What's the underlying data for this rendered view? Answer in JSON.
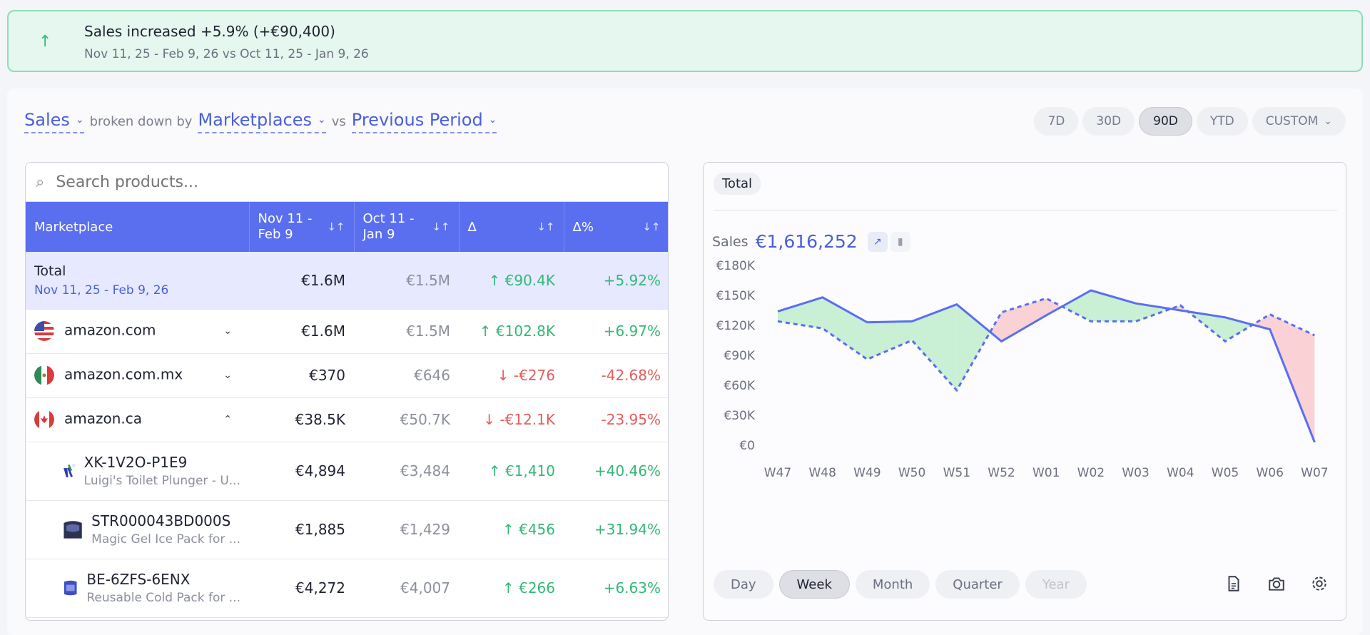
{
  "banner": {
    "arrow": "↑",
    "title": "Sales increased +5.9% (+€90,400)",
    "subtitle": "Nov 11, 25 - Feb 9, 26 vs Oct 11, 25 - Jan 9, 26"
  },
  "filters": {
    "metric": "Sales",
    "broken_down_by": "broken down by",
    "dimension": "Marketplaces",
    "vs": "vs",
    "comparison": "Previous Period"
  },
  "periods": [
    "7D",
    "30D",
    "90D",
    "YTD",
    "CUSTOM"
  ],
  "active_period": "90D",
  "search": {
    "placeholder": "Search products..."
  },
  "table": {
    "headers": {
      "marketplace": "Marketplace",
      "current": "Nov 11 -\nFeb 9",
      "previous": "Oct 11 -\nJan 9",
      "delta": "Δ",
      "delta_pct": "Δ%"
    },
    "total": {
      "label": "Total",
      "range": "Nov 11, 25 - Feb 9, 26",
      "current": "€1.6M",
      "previous": "€1.5M",
      "delta": "↑ €90.4K",
      "delta_pct": "+5.92%"
    },
    "marketplaces": [
      {
        "name": "amazon.com",
        "current": "€1.6M",
        "previous": "€1.5M",
        "delta": "↑ €102.8K",
        "delta_pct": "+6.97%",
        "trend": "up",
        "expanded": false
      },
      {
        "name": "amazon.com.mx",
        "current": "€370",
        "previous": "€646",
        "delta": "↓ -€276",
        "delta_pct": "-42.68%",
        "trend": "down",
        "expanded": false
      },
      {
        "name": "amazon.ca",
        "current": "€38.5K",
        "previous": "€50.7K",
        "delta": "↓ -€12.1K",
        "delta_pct": "-23.95%",
        "trend": "down",
        "expanded": true
      }
    ],
    "products": [
      {
        "sku": "XK-1V2O-P1E9",
        "title": "Luigi's Toilet Plunger - U...",
        "current": "€4,894",
        "previous": "€3,484",
        "delta": "↑ €1,410",
        "delta_pct": "+40.46%"
      },
      {
        "sku": "STR000043BD000S",
        "title": "Magic Gel Ice Pack for ...",
        "current": "€1,885",
        "previous": "€1,429",
        "delta": "↑ €456",
        "delta_pct": "+31.94%"
      },
      {
        "sku": "BE-6ZFS-6ENX",
        "title": "Reusable Cold Pack for ...",
        "current": "€4,272",
        "previous": "€4,007",
        "delta": "↑ €266",
        "delta_pct": "+6.63%"
      }
    ]
  },
  "chart_panel": {
    "tab": "Total",
    "sales_label": "Sales",
    "sales_value": "€1,616,252",
    "granularity": [
      "Day",
      "Week",
      "Month",
      "Quarter",
      "Year"
    ],
    "active_granularity": "Week"
  },
  "chart_data": {
    "type": "line",
    "categories": [
      "W47",
      "W48",
      "W49",
      "W50",
      "W51",
      "W52",
      "W01",
      "W02",
      "W03",
      "W04",
      "W05",
      "W06",
      "W07"
    ],
    "series": [
      {
        "values": [
          134000,
          148000,
          123000,
          124000,
          141000,
          104000,
          130000,
          155000,
          142000,
          135000,
          128000,
          116000,
          3000
        ],
        "style": "solid"
      },
      {
        "values": [
          124000,
          117000,
          86000,
          105000,
          55000,
          133000,
          147000,
          124000,
          124000,
          140000,
          104000,
          131000,
          110000
        ],
        "style": "dashed"
      }
    ],
    "ylim": [
      0,
      180000
    ],
    "yticks": [
      "€0",
      "€30K",
      "€60K",
      "€90K",
      "€120K",
      "€150K",
      "€180K"
    ],
    "colors": {
      "line": "#5a6ef0",
      "gain_fill": "#bfeccd",
      "loss_fill": "#f9c9cc"
    }
  }
}
